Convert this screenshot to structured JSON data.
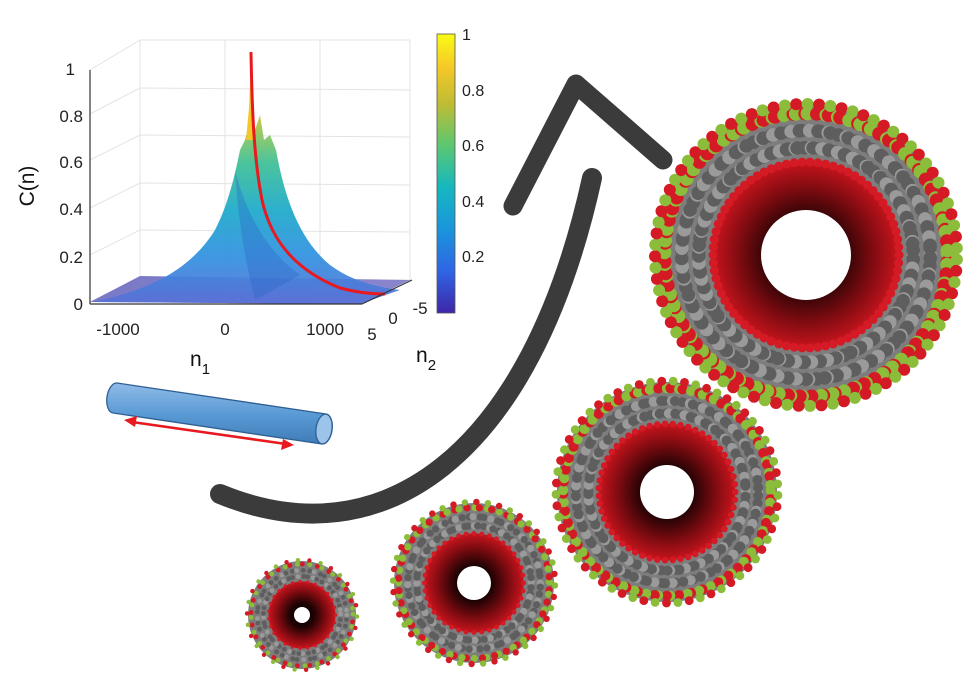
{
  "plot": {
    "zlabel": "C(n)",
    "xlabel": "n",
    "xlabel_sub": "1",
    "ylabel": "n",
    "ylabel_sub": "2",
    "z_ticks": [
      "0",
      "0.2",
      "0.4",
      "0.6",
      "0.8",
      "1"
    ],
    "x_ticks": [
      "-1000",
      "0",
      "1000"
    ],
    "y_ticks": [
      "5",
      "0",
      "-5"
    ],
    "colorbar_ticks": [
      "0.2",
      "0.4",
      "0.6",
      "0.8",
      "1"
    ],
    "colormap": [
      "#3e26a8",
      "#2f65e4",
      "#1a95db",
      "#16b7c0",
      "#5bc771",
      "#bfbc34",
      "#f5c828",
      "#f9fb14"
    ],
    "curve_color": "#e8191f"
  },
  "cylinder": {
    "fill": "#5b9bd5",
    "stroke": "#2e5f93",
    "arrow_color": "#e8191f"
  },
  "arrow": {
    "color": "#3b3b3b"
  },
  "nanotubes": {
    "count": 4,
    "colors": {
      "gray": "#7d7d7d",
      "red": "#d41a24",
      "green": "#8bbd3a",
      "dark_red": "#4a0708"
    }
  }
}
